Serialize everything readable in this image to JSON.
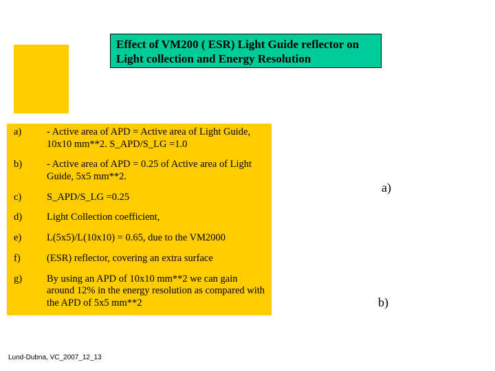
{
  "colors": {
    "yellow": "#ffcc00",
    "green": "#00cc99",
    "border": "#000000",
    "bg": "#ffffff"
  },
  "title": {
    "line1": "Effect of VM200 ( ESR) Light Guide reflector on",
    "line2": "Light collection and Energy Resolution"
  },
  "items": [
    {
      "label": "a)",
      "text": "  - Active area of APD = Active area of Light Guide, 10x10 mm**2. S_APD/S_LG =1.0"
    },
    {
      "label": "b)",
      "text": "  - Active area of APD = 0.25 of Active area of Light Guide, 5x5 mm**2."
    },
    {
      "label": "c)",
      "text": "        S_APD/S_LG =0.25"
    },
    {
      "label": "d)",
      "text": "Light Collection coefficient,"
    },
    {
      "label": "e)",
      "text": "L(5x5)/L(10x10) = 0.65, due to the VM2000"
    },
    {
      "label": "f)",
      "text": "(ESR) reflector, covering an extra surface"
    },
    {
      "label": "g)",
      "text": "        By using an APD of 10x10 mm**2 we can gain around 12% in the energy resolution as compared with the APD of 5x5 mm**2"
    }
  ],
  "side_labels": {
    "a": "a)",
    "b": "b)"
  },
  "footer": "Lund-Dubna, VC_2007_12_13"
}
